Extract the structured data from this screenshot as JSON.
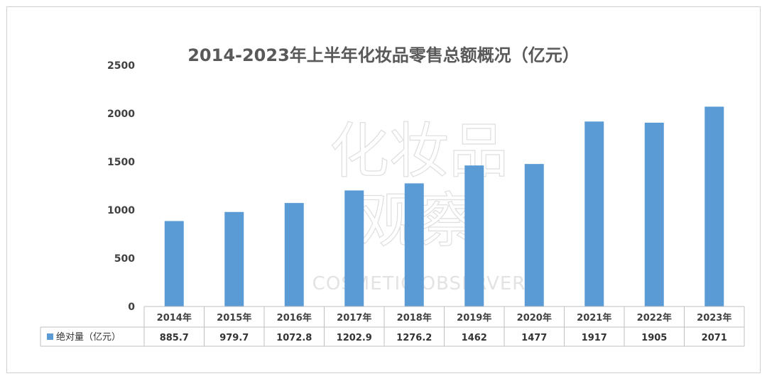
{
  "chart_data": {
    "type": "bar",
    "title": "2014-2023年上半年化妆品零售总额概况（亿元）",
    "categories": [
      "2014年",
      "2015年",
      "2016年",
      "2017年",
      "2018年",
      "2019年",
      "2020年",
      "2021年",
      "2022年",
      "2023年"
    ],
    "series": [
      {
        "name": "绝对量（亿元）",
        "values": [
          885.7,
          979.7,
          1072.8,
          1202.9,
          1276.2,
          1462,
          1477,
          1917,
          1905,
          2071
        ],
        "labels": [
          "885.7",
          "979.7",
          "1072.8",
          "1202.9",
          "1276.2",
          "1462",
          "1477",
          "1917",
          "1905",
          "2071"
        ],
        "color": "#5b9bd5"
      }
    ],
    "ylim": [
      0,
      2500
    ],
    "yticks": [
      0,
      500,
      1000,
      1500,
      2000,
      2500
    ],
    "grid": false,
    "legend": "data-table"
  },
  "watermark": {
    "line1": "化妆品",
    "line2": "观察",
    "line3": "COSMETIC OBSERVER"
  }
}
